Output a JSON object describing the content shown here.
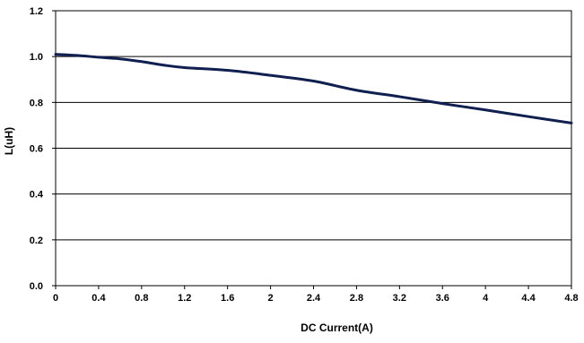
{
  "chart_data": {
    "type": "line",
    "xlabel": "DC Current(A)",
    "ylabel": "L(uH)",
    "xlim": [
      0,
      4.8
    ],
    "ylim": [
      0,
      1.2
    ],
    "x_ticks": [
      "0",
      "0.4",
      "0.8",
      "1.2",
      "1.6",
      "2",
      "2.4",
      "2.8",
      "3.2",
      "3.6",
      "4",
      "4.4",
      "4.8"
    ],
    "y_ticks": [
      "0.0",
      "0.2",
      "0.4",
      "0.6",
      "0.8",
      "1.0",
      "1.2"
    ],
    "grid": "horizontal",
    "series": [
      {
        "color": "#0f1f4f",
        "points": [
          {
            "x": 0,
            "y": 1.01
          },
          {
            "x": 0.2,
            "y": 1.005
          },
          {
            "x": 0.4,
            "y": 0.997
          },
          {
            "x": 0.6,
            "y": 0.99
          },
          {
            "x": 0.8,
            "y": 0.978
          },
          {
            "x": 1.0,
            "y": 0.963
          },
          {
            "x": 1.2,
            "y": 0.952
          },
          {
            "x": 1.6,
            "y": 0.94
          },
          {
            "x": 2.0,
            "y": 0.918
          },
          {
            "x": 2.4,
            "y": 0.893
          },
          {
            "x": 2.8,
            "y": 0.853
          },
          {
            "x": 3.2,
            "y": 0.825
          },
          {
            "x": 3.6,
            "y": 0.795
          },
          {
            "x": 4.0,
            "y": 0.767
          },
          {
            "x": 4.4,
            "y": 0.738
          },
          {
            "x": 4.8,
            "y": 0.71
          }
        ]
      }
    ]
  }
}
